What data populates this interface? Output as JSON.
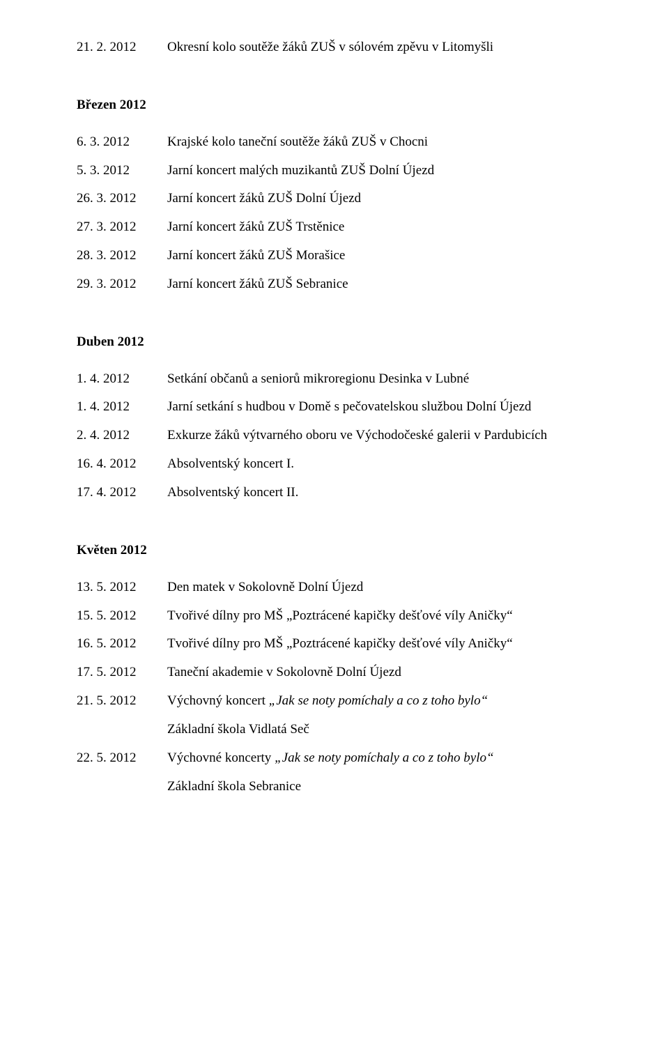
{
  "top_entry": {
    "date": "21. 2. 2012",
    "desc": "Okresní kolo soutěže žáků ZUŠ v sólovém zpěvu v Litomyšli"
  },
  "sections": {
    "brezen": {
      "heading": "Březen 2012",
      "entries": [
        {
          "date": "6. 3. 2012",
          "desc": "Krajské kolo taneční soutěže žáků ZUŠ v Chocni"
        },
        {
          "date": "5. 3. 2012",
          "desc": "Jarní koncert malých muzikantů ZUŠ Dolní Újezd"
        },
        {
          "date": "26. 3. 2012",
          "desc": "Jarní koncert žáků ZUŠ Dolní Újezd"
        },
        {
          "date": "27. 3. 2012",
          "desc": "Jarní koncert žáků ZUŠ Trstěnice"
        },
        {
          "date": "28. 3. 2012",
          "desc": "Jarní koncert žáků ZUŠ Morašice"
        },
        {
          "date": "29. 3. 2012",
          "desc": "Jarní koncert žáků ZUŠ Sebranice"
        }
      ]
    },
    "duben": {
      "heading": "Duben 2012",
      "entries": [
        {
          "date": "1. 4. 2012",
          "desc": "Setkání občanů a seniorů mikroregionu Desinka v Lubné"
        },
        {
          "date": "1. 4. 2012",
          "desc": "Jarní setkání s hudbou v Domě s pečovatelskou službou Dolní Újezd"
        },
        {
          "date": "2. 4. 2012",
          "desc": "Exkurze žáků výtvarného oboru ve Východočeské galerii v Pardubicích"
        },
        {
          "date": "16. 4. 2012",
          "desc": "Absolventský koncert I."
        },
        {
          "date": "17. 4. 2012",
          "desc": "Absolventský koncert II."
        }
      ]
    },
    "kveten": {
      "heading": "Květen 2012",
      "entries": [
        {
          "date": "13. 5. 2012",
          "desc": "Den matek v Sokolovně Dolní Újezd"
        },
        {
          "date": "15. 5. 2012",
          "desc": "Tvořivé dílny pro MŠ „Poztrácené kapičky dešťové víly Aničky“"
        },
        {
          "date": "16. 5. 2012",
          "desc": "Tvořivé dílny pro MŠ „Poztrácené kapičky dešťové víly Aničky“"
        },
        {
          "date": "17. 5. 2012",
          "desc": "Taneční akademie v Sokolovně Dolní Újezd"
        }
      ],
      "entry5": {
        "date": "21. 5. 2012",
        "prefix": "Výchovný koncert ",
        "italic": "„Jak se noty pomíchaly a co z toho bylo“",
        "line2": "Základní škola Vidlatá Seč"
      },
      "entry6": {
        "date": "22. 5. 2012",
        "prefix": "Výchovné koncerty ",
        "italic": "„Jak se noty pomíchaly a co z toho bylo“",
        "line2": "Základní škola Sebranice"
      }
    }
  }
}
